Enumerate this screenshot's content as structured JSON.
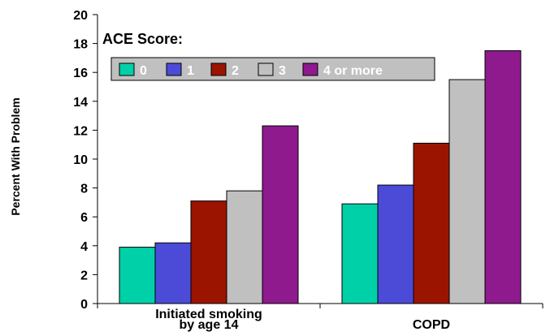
{
  "chart_data": {
    "type": "bar",
    "title": "",
    "ylabel": "Percent With Problem",
    "xlabel": "",
    "ylim": [
      0,
      20
    ],
    "yticks": [
      0,
      2,
      4,
      6,
      8,
      10,
      12,
      14,
      16,
      18,
      20
    ],
    "grid": false,
    "legend_title": "ACE Score:",
    "legend_placement": "top-left, inside plot",
    "categories": [
      [
        "Initiated smoking",
        "by age 14"
      ],
      [
        "COPD"
      ]
    ],
    "series": [
      {
        "name": "0",
        "color": "#00d0a8",
        "values": [
          3.9,
          6.9
        ]
      },
      {
        "name": "1",
        "color": "#4b4bd8",
        "values": [
          4.2,
          8.2
        ]
      },
      {
        "name": "2",
        "color": "#9b1400",
        "values": [
          7.1,
          11.1
        ]
      },
      {
        "name": "3",
        "color": "#c0c0c0",
        "values": [
          7.8,
          15.5
        ]
      },
      {
        "name": "4 or more",
        "color": "#8e1a8e",
        "values": [
          12.3,
          17.5
        ]
      }
    ]
  }
}
